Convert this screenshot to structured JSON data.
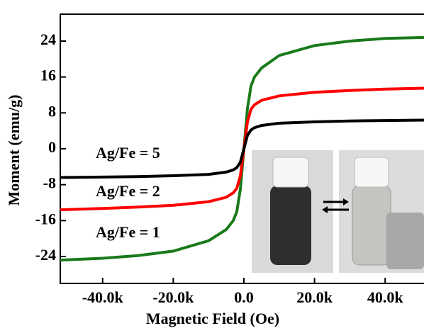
{
  "chart_data": {
    "type": "line",
    "xlabel": "Magnetic Field (Oe)",
    "ylabel": "Moment (emu/g)",
    "x": [
      -52000,
      -40000,
      -30000,
      -20000,
      -10000,
      -5000,
      -3000,
      -2000,
      -1000,
      0,
      1000,
      2000,
      3000,
      5000,
      10000,
      20000,
      30000,
      40000,
      51000
    ],
    "series": [
      {
        "name": "Ag/Fe = 1",
        "color": "#1a7a1a",
        "values": [
          -24.8,
          -24.4,
          -23.8,
          -22.8,
          -20.5,
          -18,
          -16,
          -14,
          -9,
          0,
          9,
          14,
          16,
          18,
          20.8,
          23,
          24,
          24.6,
          24.8
        ]
      },
      {
        "name": "Ag/Fe = 2",
        "color": "#ff0000",
        "values": [
          -13.6,
          -13.3,
          -13.0,
          -12.6,
          -11.8,
          -10.8,
          -9.8,
          -8.8,
          -6,
          0,
          6,
          8.8,
          9.8,
          10.8,
          11.8,
          12.6,
          13.0,
          13.3,
          13.5
        ]
      },
      {
        "name": "Ag/Fe = 5",
        "color": "#000000",
        "values": [
          -6.4,
          -6.3,
          -6.2,
          -6.0,
          -5.7,
          -5.2,
          -4.7,
          -4.2,
          -3,
          0,
          3,
          4.2,
          4.7,
          5.2,
          5.7,
          6.0,
          6.2,
          6.3,
          6.4
        ]
      }
    ],
    "xlim": [
      -52000,
      51000
    ],
    "ylim": [
      -30,
      30
    ],
    "xticks": [
      {
        "value": -40000,
        "label": "-40.0k"
      },
      {
        "value": -20000,
        "label": "-20.0k"
      },
      {
        "value": 0,
        "label": "0.0"
      },
      {
        "value": 20000,
        "label": "20.0k"
      },
      {
        "value": 40000,
        "label": "40.0k"
      }
    ],
    "yticks": [
      -24,
      -16,
      -8,
      0,
      8,
      16,
      24
    ]
  }
}
